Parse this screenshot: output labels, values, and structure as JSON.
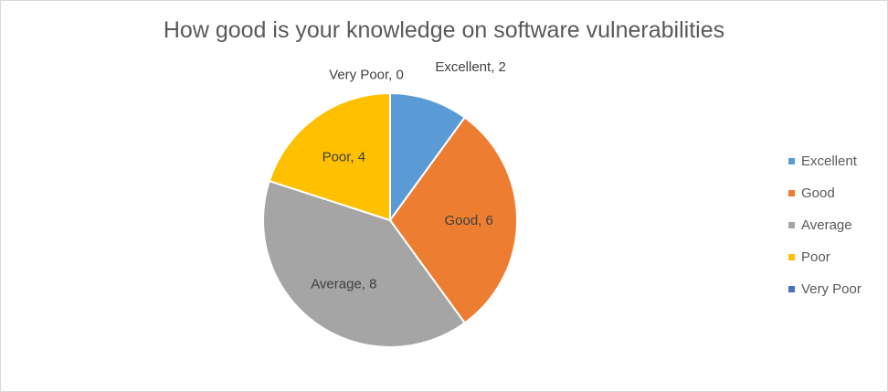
{
  "chart_data": {
    "type": "pie",
    "title": "How good is your knowledge on software vulnerabilities",
    "categories": [
      "Excellent",
      "Good",
      "Average",
      "Poor",
      "Very Poor"
    ],
    "values": [
      2,
      6,
      8,
      4,
      0
    ],
    "data_labels": [
      "Excellent,  2",
      "Good, 6",
      "Average, 8",
      "Poor, 4",
      "Very Poor, 0"
    ],
    "colors": [
      "#5b9bd5",
      "#ed7d31",
      "#a5a5a5",
      "#ffc000",
      "#4472c4"
    ],
    "legend_position": "right",
    "start_angle": "12 o'clock",
    "direction": "clockwise"
  }
}
